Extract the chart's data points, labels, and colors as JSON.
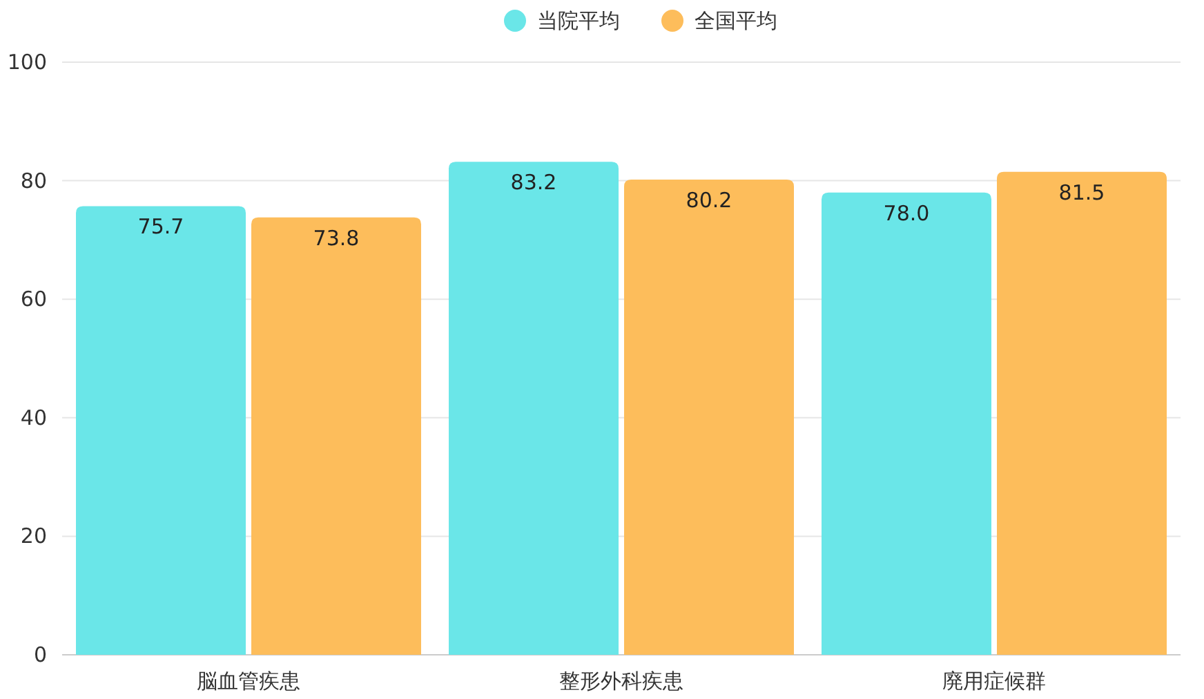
{
  "chart_data": {
    "type": "bar",
    "categories": [
      "脳血管疾患",
      "整形外科疾患",
      "廃用症候群"
    ],
    "series": [
      {
        "name": "当院平均",
        "color": "#6ae6e8",
        "values": [
          75.7,
          83.2,
          78.0
        ],
        "value_labels": [
          "75.7",
          "83.2",
          "78.0"
        ]
      },
      {
        "name": "全国平均",
        "color": "#fdbd5b",
        "values": [
          73.8,
          80.2,
          81.5
        ],
        "value_labels": [
          "73.8",
          "80.2",
          "81.5"
        ]
      }
    ],
    "ylim": [
      0,
      100
    ],
    "yticks": [
      0,
      20,
      40,
      60,
      80,
      100
    ],
    "grid": "y",
    "legend": "top"
  }
}
